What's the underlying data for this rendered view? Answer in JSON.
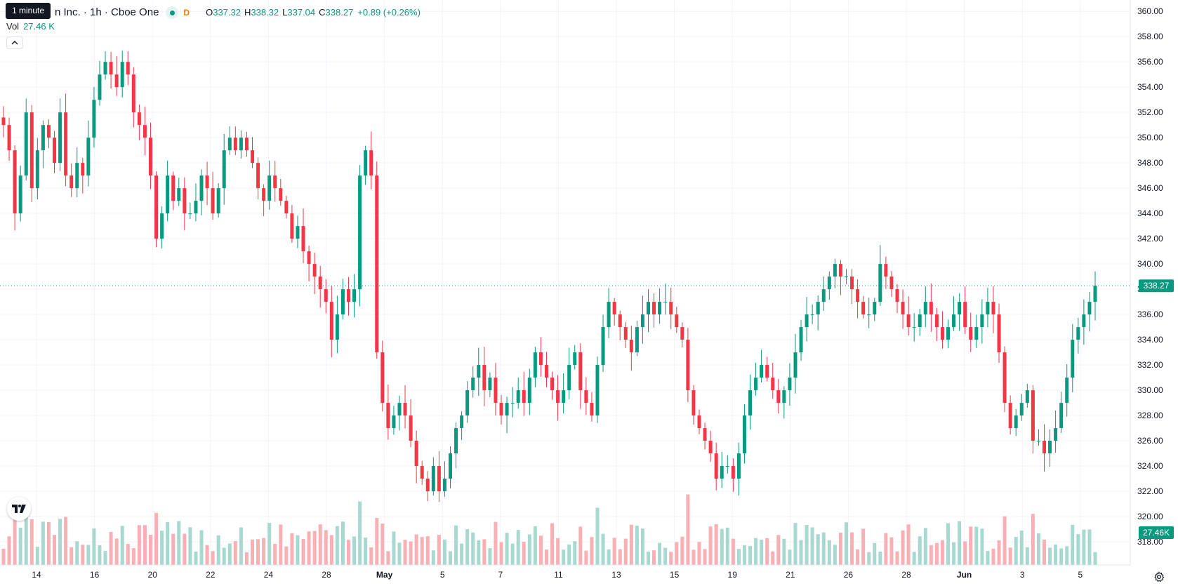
{
  "header": {
    "symbol_title": "n Inc. · 1h · Cboe One",
    "status_badge": "D",
    "tooltip": "1 minute",
    "ohlc": {
      "o_label": "O",
      "o": "337.32",
      "h_label": "H",
      "h": "338.32",
      "l_label": "L",
      "l": "337.04",
      "c_label": "C",
      "c": "338.27",
      "change": "+0.89 (+0.26%)"
    },
    "volume_label": "Vol",
    "volume_value": "27.46 K"
  },
  "colors": {
    "up": "#089981",
    "down": "#f23645",
    "up_volume": "#a7d9d1",
    "down_volume": "#f8b0b4",
    "price_label_bg": "#089981",
    "grid": "#f0f3fa"
  },
  "icons": {
    "collapse": "chevron-up-icon",
    "logo": "tradingview-logo",
    "settings": "gear-icon"
  },
  "chart_data": {
    "type": "candlestick",
    "interval": "1h",
    "last_price": 338.27,
    "last_price_label": "338.27",
    "last_volume_label": "27.46K",
    "ylim": [
      317,
      360.9
    ],
    "y_ticks": [
      "318.00",
      "320.00",
      "322.00",
      "324.00",
      "326.00",
      "328.00",
      "330.00",
      "332.00",
      "334.00",
      "336.00",
      "338.00",
      "340.00",
      "342.00",
      "344.00",
      "346.00",
      "348.00",
      "350.00",
      "352.00",
      "354.00",
      "356.00",
      "358.00",
      "360.00"
    ],
    "x_ticks": [
      "14",
      "16",
      "20",
      "22",
      "24",
      "28",
      "May",
      "5",
      "7",
      "11",
      "13",
      "15",
      "19",
      "21",
      "26",
      "28",
      "Jun",
      "3",
      "5"
    ],
    "grid": true,
    "series_closes": [
      {
        "date": "14",
        "closes": [
          351,
          349,
          344,
          347,
          352,
          346,
          349,
          351,
          350,
          348,
          352
        ]
      },
      {
        "date": "16",
        "closes": [
          347,
          346,
          348,
          347,
          350,
          353,
          355,
          356,
          355,
          354,
          356
        ]
      },
      {
        "date": "20",
        "closes": [
          355,
          352,
          351,
          350,
          347,
          342,
          344,
          347,
          345,
          346,
          344
        ]
      },
      {
        "date": "22",
        "closes": [
          344,
          345,
          347,
          346,
          344,
          346,
          349,
          350,
          349,
          350,
          349
        ]
      },
      {
        "date": "24",
        "closes": [
          348,
          346,
          345,
          347,
          346,
          345,
          344,
          342,
          343,
          341,
          340
        ]
      },
      {
        "date": "28",
        "closes": [
          339,
          338,
          337,
          334,
          336,
          338,
          337,
          338,
          347,
          349,
          347
        ]
      },
      {
        "date": "May",
        "closes": [
          333,
          329,
          327,
          328,
          329,
          328,
          326,
          324,
          323,
          322,
          324
        ]
      },
      {
        "date": "5",
        "closes": [
          322,
          323,
          325,
          327,
          328,
          330,
          331,
          332,
          330,
          331,
          329
        ]
      },
      {
        "date": "7",
        "closes": [
          328,
          329,
          329,
          330,
          329,
          331,
          333,
          332,
          331,
          330,
          329
        ]
      },
      {
        "date": "11",
        "closes": [
          330,
          332,
          333,
          330,
          329,
          328,
          332,
          335,
          337,
          336,
          335
        ]
      },
      {
        "date": "13",
        "closes": [
          334,
          333,
          335,
          336,
          337,
          336,
          337,
          337,
          336,
          335,
          334
        ]
      },
      {
        "date": "15",
        "closes": [
          330,
          328,
          327,
          326,
          325,
          323,
          324,
          324,
          323,
          325,
          328
        ]
      },
      {
        "date": "19",
        "closes": [
          330,
          331,
          332,
          331,
          330,
          329,
          330,
          331,
          333,
          335,
          336
        ]
      },
      {
        "date": "21",
        "closes": [
          336,
          337,
          338,
          339,
          340,
          339,
          339,
          338,
          337,
          336,
          336
        ]
      },
      {
        "date": "26",
        "closes": [
          337,
          340,
          339,
          338,
          337,
          336,
          335,
          335,
          336,
          337,
          336
        ]
      },
      {
        "date": "28",
        "closes": [
          335,
          334,
          335,
          336,
          337,
          335,
          334,
          335,
          336,
          337,
          336
        ]
      },
      {
        "date": "Jun",
        "closes": [
          333,
          329,
          327,
          328,
          329,
          330,
          326,
          326,
          325,
          326,
          327
        ]
      },
      {
        "date": "3",
        "closes": [
          329,
          331,
          334,
          335,
          336,
          337,
          338.27
        ]
      }
    ]
  }
}
